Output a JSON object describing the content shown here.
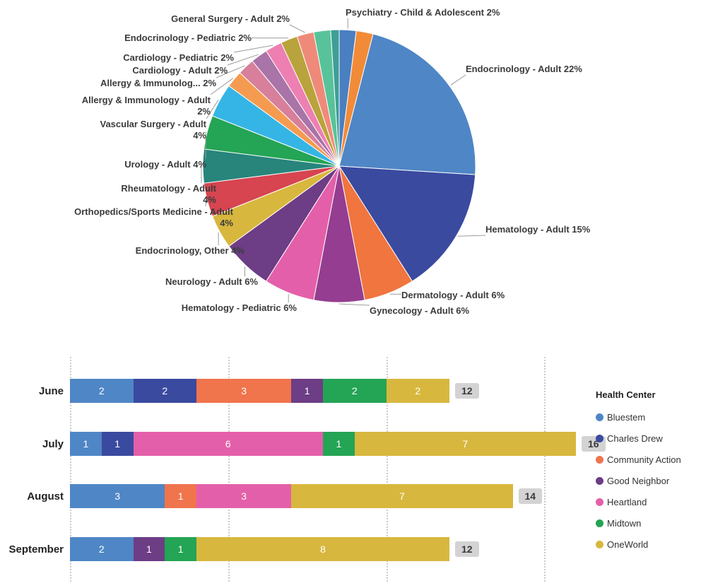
{
  "chart_data": [
    {
      "id": "referrals-by-specialty",
      "type": "pie",
      "title": "",
      "legend_position": "none",
      "segments": [
        {
          "label": "Psychiatry - Child & Adolescent",
          "pct": 2,
          "display": "Psychiatry - Child & Adolescent 2%",
          "color": "#4a7fc1"
        },
        {
          "label": "",
          "pct": 2,
          "display": "",
          "color": "#f28b38"
        },
        {
          "label": "Endocrinology - Adult",
          "pct": 22,
          "display": "Endocrinology - Adult 22%",
          "color": "#4f86c6"
        },
        {
          "label": "Hematology - Adult",
          "pct": 15,
          "display": "Hematology - Adult 15%",
          "color": "#3a4a9f"
        },
        {
          "label": "Dermatology - Adult",
          "pct": 6,
          "display": "Dermatology - Adult 6%",
          "color": "#f0753f"
        },
        {
          "label": "Gynecology - Adult",
          "pct": 6,
          "display": "Gynecology - Adult 6%",
          "color": "#953d90"
        },
        {
          "label": "Hematology - Pediatric",
          "pct": 6,
          "display": "Hematology - Pediatric 6%",
          "color": "#e45fa9"
        },
        {
          "label": "Neurology - Adult",
          "pct": 6,
          "display": "Neurology - Adult 6%",
          "color": "#6d3d85"
        },
        {
          "label": "Endocrinology, Other",
          "pct": 4,
          "display": "Endocrinology, Other 4%",
          "color": "#d8b73e"
        },
        {
          "label": "Orthopedics/Sports Medicine - Adult",
          "pct": 4,
          "display": "Orthopedics/Sports Medicine - Adult\n4%",
          "color": "#d64550"
        },
        {
          "label": "Rheumatology - Adult",
          "pct": 4,
          "display": "Rheumatology - Adult\n4%",
          "color": "#27857c"
        },
        {
          "label": "Urology - Adult",
          "pct": 4,
          "display": "Urology - Adult 4%",
          "color": "#24a455"
        },
        {
          "label": "Vascular Surgery - Adult",
          "pct": 4,
          "display": "Vascular Surgery - Adult\n4%",
          "color": "#35b5e5"
        },
        {
          "label": "Allergy & Immunology - Adult",
          "pct": 2,
          "display": "Allergy & Immunology - Adult\n2%",
          "color": "#f59b51"
        },
        {
          "label": "Allergy & Immunolog...",
          "pct": 2,
          "display": "Allergy & Immunolog... 2%",
          "color": "#d77f9b"
        },
        {
          "label": "Cardiology - Adult",
          "pct": 2,
          "display": "Cardiology - Adult 2%",
          "color": "#a974a8"
        },
        {
          "label": "Cardiology - Pediatric",
          "pct": 2,
          "display": "Cardiology - Pediatric 2%",
          "color": "#ee7fb2"
        },
        {
          "label": "Endocrinology - Pediatric",
          "pct": 2,
          "display": "Endocrinology - Pediatric 2%",
          "color": "#b9a33c"
        },
        {
          "label": "General Surgery - Adult",
          "pct": 2,
          "display": "General Surgery - Adult 2%",
          "color": "#ef8a7a"
        },
        {
          "label": "",
          "pct": 2,
          "display": "",
          "color": "#58c39a"
        },
        {
          "label": "",
          "pct": 1,
          "display": "",
          "color": "#3e9e97"
        }
      ]
    },
    {
      "id": "referrals-by-month",
      "type": "bar",
      "orientation": "horizontal-stacked",
      "categories": [
        "June",
        "July",
        "August",
        "September"
      ],
      "series": [
        {
          "name": "Bluestem",
          "color": "#4f86c6",
          "values": [
            2,
            1,
            3,
            2
          ]
        },
        {
          "name": "Charles Drew",
          "color": "#3a4a9f",
          "values": [
            2,
            1,
            0,
            0
          ]
        },
        {
          "name": "Community Action",
          "color": "#f0744c",
          "values": [
            3,
            0,
            1,
            0
          ]
        },
        {
          "name": "Good Neighbor",
          "color": "#6d3d85",
          "values": [
            1,
            0,
            0,
            1
          ]
        },
        {
          "name": "Heartland",
          "color": "#e45fa9",
          "values": [
            0,
            6,
            3,
            0
          ]
        },
        {
          "name": "Midtown",
          "color": "#24a455",
          "values": [
            2,
            1,
            0,
            1
          ]
        },
        {
          "name": "OneWorld",
          "color": "#d8b73e",
          "values": [
            2,
            7,
            7,
            8
          ]
        }
      ],
      "totals": [
        12,
        16,
        14,
        12
      ],
      "legend_title": "Health Center",
      "x_gridlines": [
        0,
        5,
        10,
        15
      ],
      "grid": "dotted",
      "legend_position": "right"
    }
  ]
}
